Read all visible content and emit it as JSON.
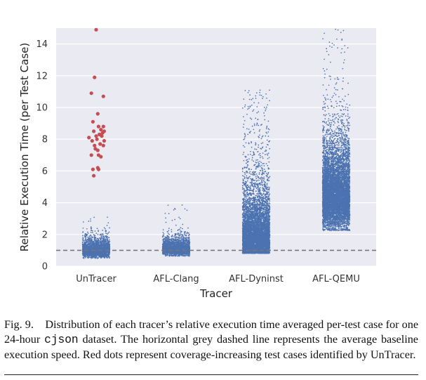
{
  "chart_data": {
    "type": "scatter",
    "subtype": "strip",
    "xlabel": "Tracer",
    "ylabel": "Relative Execution Time (per Test Case)",
    "categories": [
      "UnTracer",
      "AFL-Clang",
      "AFL-Dyninst",
      "AFL-QEMU"
    ],
    "ylim": [
      0,
      15
    ],
    "yticks": [
      0,
      2,
      4,
      6,
      8,
      10,
      12,
      14
    ],
    "grid": true,
    "baseline": {
      "y": 1.0,
      "style": "dashed",
      "color": "#777777"
    },
    "point_color": "#4c72b0",
    "highlight_color": "#c44e52",
    "background": "#eaeaf2",
    "series": [
      {
        "category": "UnTracer",
        "median": 1.05,
        "core_range": [
          0.55,
          1.8
        ],
        "max": 3.2,
        "n": 2200
      },
      {
        "category": "AFL-Clang",
        "median": 1.15,
        "core_range": [
          0.7,
          2.0
        ],
        "max": 4.0,
        "n": 2000
      },
      {
        "category": "AFL-Dyninst",
        "median": 2.0,
        "core_range": [
          0.9,
          7.0
        ],
        "max": 11.1,
        "n": 6000
      },
      {
        "category": "AFL-QEMU",
        "median": 4.6,
        "core_range": [
          2.5,
          9.0
        ],
        "max": 15.0,
        "n": 7000
      }
    ],
    "highlighted_points": {
      "category": "UnTracer",
      "x_offset": [
        0.0,
        -0.02,
        0.09,
        -0.06,
        0.02,
        0.03,
        -0.04,
        0.06,
        0.08,
        0.09,
        0.1,
        -0.03,
        0.04,
        0.0,
        -0.09,
        0.01,
        0.07,
        -0.05,
        0.05,
        0.1,
        -0.02,
        0.09,
        0.02,
        -0.06,
        0.03,
        -0.01,
        0.06,
        0.02,
        -0.04,
        0.03,
        -0.03
      ],
      "y": [
        14.9,
        11.9,
        10.7,
        10.9,
        9.6,
        8.8,
        9.1,
        8.6,
        8.4,
        8.8,
        8.5,
        8.5,
        8.3,
        8.2,
        8.1,
        8.0,
        8.2,
        7.9,
        7.7,
        7.9,
        7.6,
        7.6,
        7.3,
        7.0,
        7.0,
        7.4,
        6.9,
        6.2,
        6.1,
        6.1,
        5.7
      ]
    }
  },
  "caption": {
    "fig_label": "Fig. 9.",
    "text_before_code": "Distribution of each tracer’s relative execution time averaged per-test case for one 24-hour ",
    "code": "cjson",
    "text_after_code": " dataset. The horizontal grey dashed line represents the average baseline execution speed. Red dots represent coverage-increasing test cases identified by UnTracer."
  }
}
